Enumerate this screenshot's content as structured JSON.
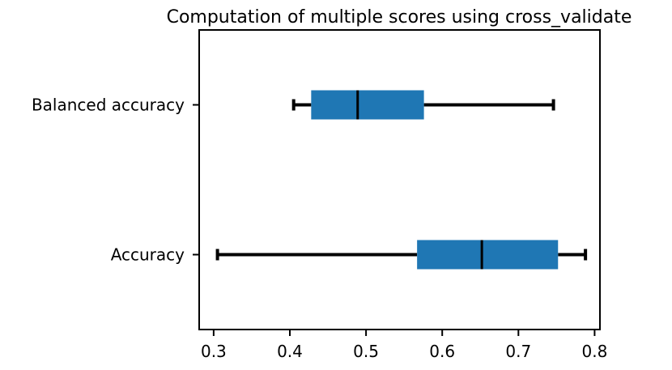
{
  "chart_data": {
    "type": "boxplot",
    "orientation": "horizontal",
    "title": "Computation of multiple scores using cross_validate",
    "categories": [
      "Accuracy",
      "Balanced accuracy"
    ],
    "boxes": [
      {
        "min": 0.305,
        "q1": 0.567,
        "median": 0.652,
        "q3": 0.752,
        "max": 0.788
      },
      {
        "min": 0.405,
        "q1": 0.428,
        "median": 0.489,
        "q3": 0.576,
        "max": 0.746
      }
    ],
    "color": "#1f77b4",
    "xlim": [
      0.281,
      0.807
    ],
    "xticks": [
      0.3,
      0.4,
      0.5,
      0.6,
      0.7,
      0.8
    ]
  }
}
